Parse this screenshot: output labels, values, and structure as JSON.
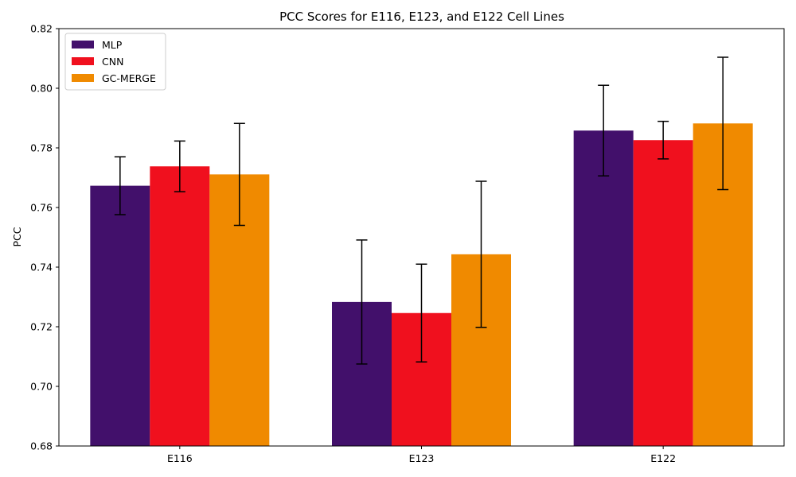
{
  "chart_data": {
    "type": "bar",
    "title": "PCC Scores for E116, E123, and E122 Cell Lines",
    "xlabel": "",
    "ylabel": "PCC",
    "ylim": [
      0.68,
      0.82
    ],
    "yticks": [
      "0.68",
      "0.70",
      "0.72",
      "0.74",
      "0.76",
      "0.78",
      "0.80",
      "0.82"
    ],
    "categories": [
      "E116",
      "E123",
      "E122"
    ],
    "series": [
      {
        "name": "MLP",
        "color": "#42106b",
        "values": [
          0.7673,
          0.7283,
          0.7858
        ],
        "errors": [
          0.0097,
          0.0208,
          0.0152
        ]
      },
      {
        "name": "CNN",
        "color": "#f0101e",
        "values": [
          0.7738,
          0.7246,
          0.7826
        ],
        "errors": [
          0.0085,
          0.0164,
          0.0063
        ]
      },
      {
        "name": "GC-MERGE",
        "color": "#f08a00",
        "values": [
          0.7711,
          0.7443,
          0.7882
        ],
        "errors": [
          0.0171,
          0.0245,
          0.0222
        ]
      }
    ],
    "legend_position": "upper-left",
    "grid": false
  }
}
